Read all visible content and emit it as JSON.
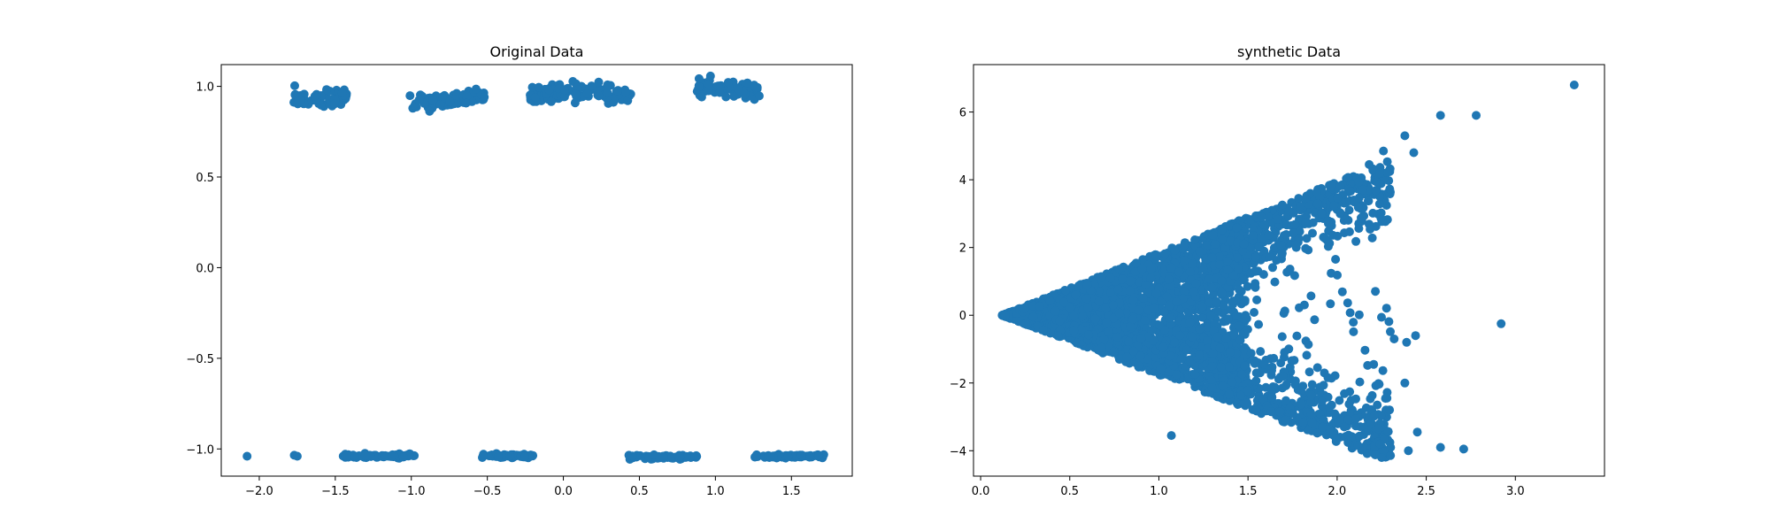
{
  "chart_data": [
    {
      "type": "scatter",
      "title": "Original Data",
      "xlabel": "",
      "ylabel": "",
      "xlim": [
        -2.25,
        1.9
      ],
      "ylim": [
        -1.15,
        1.12
      ],
      "xticks": [
        -2.0,
        -1.5,
        -1.0,
        -0.5,
        0.0,
        0.5,
        1.0,
        1.5
      ],
      "xtick_labels": [
        "−2.0",
        "−1.5",
        "−1.0",
        "−0.5",
        "0.0",
        "0.5",
        "1.0",
        "1.5"
      ],
      "yticks": [
        -1.0,
        -0.5,
        0.0,
        0.5,
        1.0
      ],
      "ytick_labels": [
        "−1.0",
        "−0.5",
        "0.0",
        "0.5",
        "1.0"
      ],
      "grid": false,
      "color": "#1f77b4",
      "clusters": [
        {
          "x_range": [
            -1.78,
            -1.42
          ],
          "y": 0.94,
          "spread": 0.025,
          "n": 70
        },
        {
          "x_range": [
            -1.02,
            -0.52
          ],
          "y": 0.93,
          "spread": 0.02,
          "n": 90
        },
        {
          "x_range": [
            -0.22,
            0.45
          ],
          "y": 0.96,
          "spread": 0.025,
          "n": 110
        },
        {
          "x_range": [
            0.88,
            1.3
          ],
          "y": 0.99,
          "spread": 0.025,
          "n": 80
        },
        {
          "x_range": [
            -1.45,
            -0.98
          ],
          "y": -1.04,
          "spread": 0.005,
          "n": 80
        },
        {
          "x_range": [
            -0.55,
            -0.2
          ],
          "y": -1.04,
          "spread": 0.005,
          "n": 60
        },
        {
          "x_range": [
            0.43,
            0.88
          ],
          "y": -1.045,
          "spread": 0.006,
          "n": 70
        },
        {
          "x_range": [
            1.25,
            1.72
          ],
          "y": -1.04,
          "spread": 0.005,
          "n": 70
        }
      ],
      "points": [
        {
          "x": -2.08,
          "y": -1.04
        },
        {
          "x": -1.77,
          "y": -1.035
        },
        {
          "x": -1.75,
          "y": -1.04
        }
      ]
    },
    {
      "type": "scatter",
      "title": "synthetic Data",
      "xlabel": "",
      "ylabel": "",
      "xlim": [
        -0.04,
        3.5
      ],
      "ylim": [
        -4.75,
        7.4
      ],
      "xticks": [
        0.0,
        0.5,
        1.0,
        1.5,
        2.0,
        2.5,
        3.0
      ],
      "xtick_labels": [
        "0.0",
        "0.5",
        "1.0",
        "1.5",
        "2.0",
        "2.5",
        "3.0"
      ],
      "yticks": [
        -4,
        -2,
        0,
        2,
        4,
        6
      ],
      "ytick_labels": [
        "−4",
        "−2",
        "0",
        "2",
        "4",
        "6"
      ],
      "grid": false,
      "color": "#1f77b4",
      "cone": {
        "x_start": 0.12,
        "slope_upper": 2.1,
        "slope_lower": 2.0,
        "dense_until": 1.5,
        "sparse_until": 2.3
      },
      "points": [
        {
          "x": 3.33,
          "y": 6.8
        },
        {
          "x": 2.78,
          "y": 5.9
        },
        {
          "x": 2.58,
          "y": 5.9
        },
        {
          "x": 2.38,
          "y": 5.3
        },
        {
          "x": 2.43,
          "y": 4.8
        },
        {
          "x": 2.92,
          "y": -0.25
        },
        {
          "x": 2.58,
          "y": -3.9
        },
        {
          "x": 2.71,
          "y": -3.95
        },
        {
          "x": 2.45,
          "y": -3.45
        },
        {
          "x": 2.25,
          "y": -4.2
        },
        {
          "x": 2.3,
          "y": -3.9
        },
        {
          "x": 2.4,
          "y": -4.0
        },
        {
          "x": 1.07,
          "y": -3.55
        },
        {
          "x": 2.38,
          "y": -2.0
        },
        {
          "x": 2.32,
          "y": -0.7
        },
        {
          "x": 2.39,
          "y": -0.8
        },
        {
          "x": 2.44,
          "y": -0.6
        },
        {
          "x": 2.24,
          "y": 4.2
        },
        {
          "x": 2.26,
          "y": 4.85
        },
        {
          "x": 2.18,
          "y": 4.45
        }
      ]
    }
  ]
}
